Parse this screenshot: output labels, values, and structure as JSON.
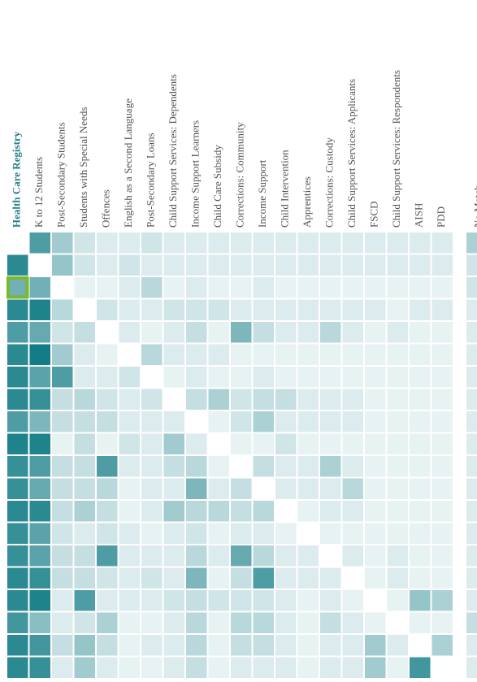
{
  "chart_data": {
    "type": "heatmap",
    "categories": [
      "Health Care Registry",
      "K to 12 Students",
      "Post-Secondary Students",
      "Students with Special Needs",
      "Offences",
      "English as a Second Language",
      "Post-Secondary Loans",
      "Child Support Services: Dependents",
      "Income Support Learners",
      "Child Care Subsidy",
      "Corrections: Community",
      "Income Support",
      "Child Intervention",
      "Apprentices",
      "Corrections: Custody",
      "Child Support Services: Applicants",
      "FSCD",
      "Child Support Services: Respondents",
      "AISH",
      "PDD"
    ],
    "values": [
      [
        null,
        75,
        40,
        20,
        15,
        15,
        20,
        15,
        15,
        15,
        15,
        15,
        15,
        15,
        15,
        15,
        15,
        15,
        15,
        15
      ],
      [
        90,
        null,
        45,
        20,
        15,
        20,
        15,
        15,
        15,
        15,
        15,
        15,
        15,
        15,
        15,
        15,
        15,
        15,
        15,
        15
      ],
      [
        60,
        60,
        null,
        10,
        10,
        15,
        30,
        10,
        15,
        10,
        10,
        15,
        10,
        10,
        10,
        10,
        10,
        10,
        10,
        10
      ],
      [
        90,
        95,
        30,
        null,
        20,
        15,
        15,
        20,
        20,
        20,
        15,
        15,
        15,
        15,
        15,
        15,
        15,
        10,
        15,
        15
      ],
      [
        75,
        65,
        20,
        25,
        null,
        15,
        10,
        15,
        25,
        10,
        55,
        25,
        15,
        15,
        30,
        15,
        10,
        15,
        10,
        10
      ],
      [
        90,
        100,
        40,
        15,
        10,
        null,
        30,
        15,
        15,
        15,
        10,
        10,
        10,
        10,
        10,
        10,
        10,
        10,
        10,
        10
      ],
      [
        90,
        70,
        75,
        15,
        15,
        20,
        null,
        10,
        15,
        10,
        10,
        15,
        10,
        10,
        10,
        10,
        10,
        10,
        10,
        10
      ],
      [
        90,
        85,
        25,
        30,
        20,
        15,
        20,
        null,
        25,
        35,
        20,
        25,
        25,
        15,
        15,
        15,
        10,
        10,
        10,
        10
      ],
      [
        75,
        55,
        25,
        25,
        25,
        15,
        15,
        15,
        null,
        10,
        20,
        35,
        15,
        15,
        15,
        15,
        10,
        10,
        10,
        10
      ],
      [
        95,
        95,
        10,
        25,
        10,
        20,
        15,
        40,
        15,
        null,
        10,
        10,
        20,
        10,
        10,
        10,
        10,
        10,
        10,
        10
      ],
      [
        85,
        75,
        25,
        25,
        75,
        15,
        15,
        25,
        30,
        10,
        null,
        25,
        15,
        15,
        35,
        15,
        10,
        10,
        10,
        10
      ],
      [
        85,
        65,
        25,
        25,
        30,
        10,
        15,
        15,
        55,
        15,
        25,
        null,
        15,
        15,
        15,
        30,
        10,
        10,
        10,
        10
      ],
      [
        90,
        90,
        25,
        35,
        25,
        10,
        15,
        40,
        30,
        30,
        25,
        30,
        null,
        10,
        15,
        15,
        10,
        10,
        10,
        10
      ],
      [
        85,
        70,
        20,
        15,
        20,
        15,
        10,
        15,
        20,
        10,
        15,
        15,
        10,
        null,
        10,
        10,
        10,
        10,
        10,
        10
      ],
      [
        85,
        70,
        25,
        25,
        75,
        15,
        15,
        15,
        30,
        15,
        65,
        30,
        15,
        15,
        null,
        15,
        10,
        15,
        10,
        10
      ],
      [
        90,
        85,
        25,
        25,
        20,
        15,
        20,
        15,
        55,
        10,
        25,
        75,
        15,
        15,
        15,
        null,
        10,
        15,
        10,
        10
      ],
      [
        90,
        95,
        15,
        75,
        15,
        15,
        15,
        20,
        25,
        20,
        20,
        20,
        15,
        10,
        15,
        10,
        null,
        10,
        45,
        35
      ],
      [
        80,
        50,
        15,
        20,
        35,
        10,
        10,
        15,
        30,
        10,
        30,
        30,
        15,
        10,
        25,
        15,
        10,
        null,
        10,
        10
      ],
      [
        90,
        80,
        25,
        45,
        25,
        10,
        15,
        15,
        30,
        10,
        25,
        25,
        15,
        10,
        15,
        15,
        40,
        15,
        null,
        35
      ],
      [
        90,
        85,
        15,
        40,
        15,
        10,
        10,
        15,
        25,
        10,
        15,
        15,
        15,
        10,
        15,
        15,
        40,
        10,
        80,
        null
      ]
    ],
    "no_match": {
      "label": "No Match",
      "values": [
        35,
        20,
        20,
        15,
        15,
        15,
        15,
        15,
        15,
        15,
        15,
        15,
        15,
        15,
        15,
        15,
        15,
        25,
        15,
        15
      ]
    },
    "zlim": [
      0,
      100
    ],
    "color": "#137c86",
    "highlight": {
      "row": 2,
      "col": 0,
      "color": "#7ab929"
    }
  }
}
